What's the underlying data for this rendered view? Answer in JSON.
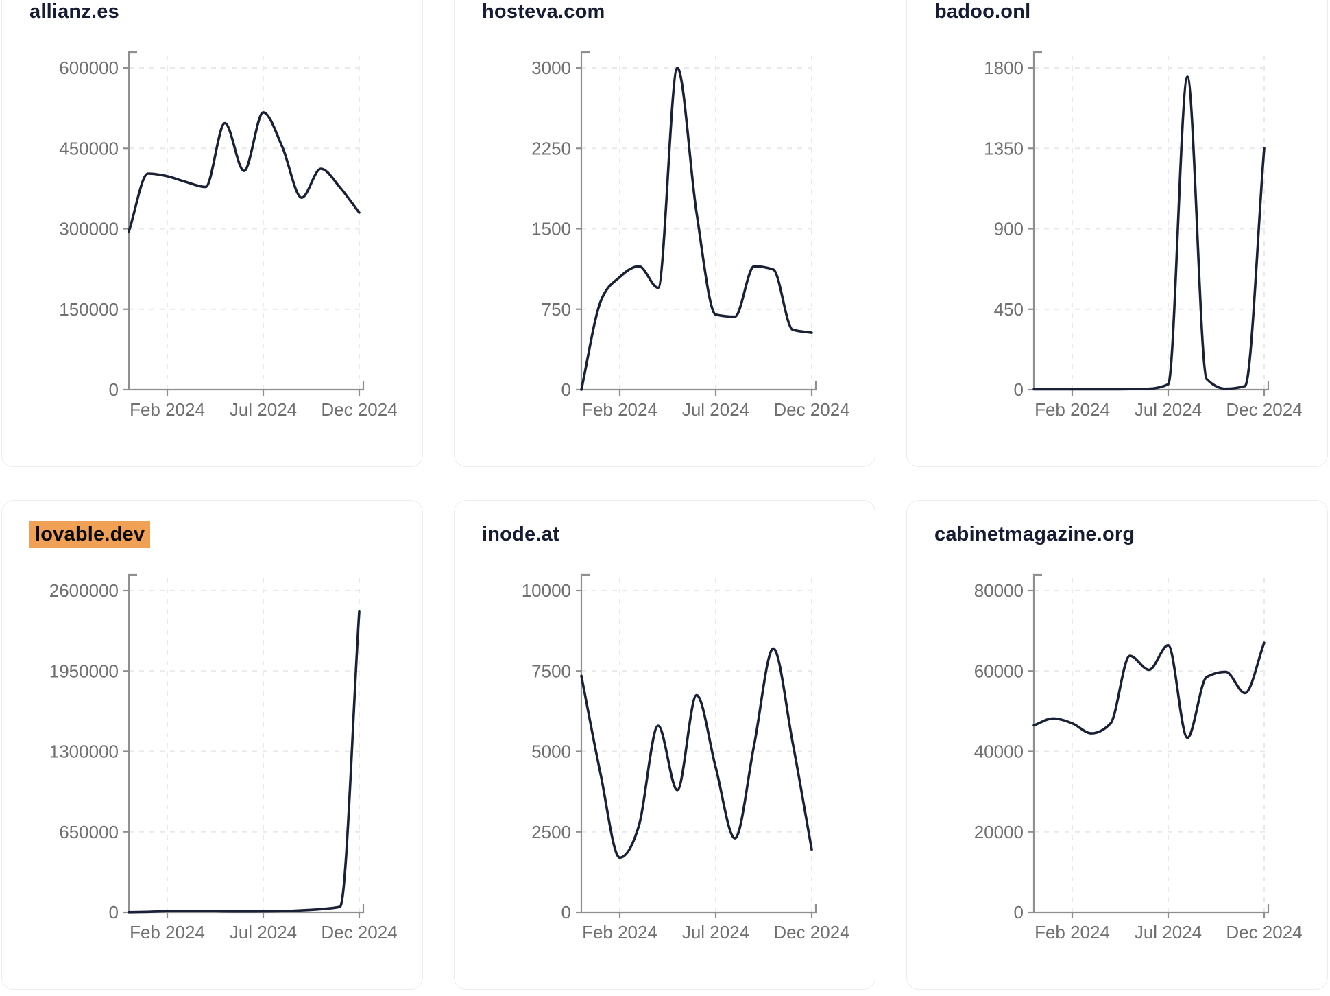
{
  "page": {
    "background": "#ffffff"
  },
  "theme": {
    "line_color": "#1a2035",
    "title_color": "#161c33",
    "tick_color": "#6f6f6f",
    "axis_color": "#8f8f8f",
    "grid_color": "#e9e9e9",
    "card_border": "#ececec",
    "card_bg": "#ffffff",
    "highlight_bg": "#f0a155",
    "highlight_text": "#0a0a0a"
  },
  "highlighted_chart": "lovable.dev",
  "x_tick_labels": [
    "Feb 2024",
    "Jul 2024",
    "Dec 2024"
  ],
  "chart_data": [
    {
      "type": "line",
      "title": "allianz.es",
      "x": [
        "Dec 2023",
        "Jan 2024",
        "Feb 2024",
        "Mar 2024",
        "Apr 2024",
        "May 2024",
        "Jun 2024",
        "Jul 2024",
        "Aug 2024",
        "Sep 2024",
        "Oct 2024",
        "Nov 2024",
        "Dec 2024"
      ],
      "values": [
        295000,
        403000,
        398000,
        387000,
        378000,
        497000,
        408000,
        517000,
        452000,
        358000,
        412000,
        377000,
        330000
      ],
      "ylim": [
        0,
        600000
      ],
      "y_ticks": [
        600000,
        450000,
        300000,
        150000,
        0
      ],
      "x_tick_labels": [
        "Feb 2024",
        "Jul 2024",
        "Dec 2024"
      ],
      "x_tick_indices": [
        2,
        7,
        12
      ],
      "grid": "dashed",
      "legend": false
    },
    {
      "type": "line",
      "title": "hosteva.com",
      "x": [
        "Dec 2023",
        "Jan 2024",
        "Feb 2024",
        "Mar 2024",
        "Apr 2024",
        "May 2024",
        "Jun 2024",
        "Jul 2024",
        "Aug 2024",
        "Sep 2024",
        "Oct 2024",
        "Nov 2024",
        "Dec 2024"
      ],
      "values": [
        0,
        820,
        1050,
        1150,
        950,
        3000,
        1650,
        700,
        680,
        1150,
        1120,
        560,
        530
      ],
      "ylim": [
        0,
        3000
      ],
      "y_ticks": [
        3000,
        2250,
        1500,
        750,
        0
      ],
      "x_tick_labels": [
        "Feb 2024",
        "Jul 2024",
        "Dec 2024"
      ],
      "x_tick_indices": [
        2,
        7,
        12
      ],
      "grid": "dashed",
      "legend": false
    },
    {
      "type": "line",
      "title": "badoo.onl",
      "x": [
        "Dec 2023",
        "Jan 2024",
        "Feb 2024",
        "Mar 2024",
        "Apr 2024",
        "May 2024",
        "Jun 2024",
        "Jul 2024",
        "Aug 2024",
        "Sep 2024",
        "Oct 2024",
        "Nov 2024",
        "Dec 2024"
      ],
      "values": [
        2,
        2,
        2,
        2,
        2,
        3,
        5,
        30,
        1750,
        60,
        5,
        20,
        1350
      ],
      "ylim": [
        0,
        1800
      ],
      "y_ticks": [
        1800,
        1350,
        900,
        450,
        0
      ],
      "x_tick_labels": [
        "Feb 2024",
        "Jul 2024",
        "Dec 2024"
      ],
      "x_tick_indices": [
        2,
        7,
        12
      ],
      "grid": "dashed",
      "legend": false
    },
    {
      "type": "line",
      "title": "lovable.dev",
      "x": [
        "Dec 2023",
        "Jan 2024",
        "Feb 2024",
        "Mar 2024",
        "Apr 2024",
        "May 2024",
        "Jun 2024",
        "Jul 2024",
        "Aug 2024",
        "Sep 2024",
        "Oct 2024",
        "Nov 2024",
        "Dec 2024"
      ],
      "values": [
        1000,
        4000,
        10000,
        12000,
        11000,
        8000,
        7000,
        8000,
        10000,
        16000,
        26000,
        45000,
        2430000
      ],
      "ylim": [
        0,
        2600000
      ],
      "y_ticks": [
        2600000,
        1950000,
        1300000,
        650000,
        0
      ],
      "x_tick_labels": [
        "Feb 2024",
        "Jul 2024",
        "Dec 2024"
      ],
      "x_tick_indices": [
        2,
        7,
        12
      ],
      "grid": "dashed",
      "legend": false
    },
    {
      "type": "line",
      "title": "inode.at",
      "x": [
        "Dec 2023",
        "Jan 2024",
        "Feb 2024",
        "Mar 2024",
        "Apr 2024",
        "May 2024",
        "Jun 2024",
        "Jul 2024",
        "Aug 2024",
        "Sep 2024",
        "Oct 2024",
        "Nov 2024",
        "Dec 2024"
      ],
      "values": [
        7350,
        4300,
        1700,
        2700,
        5800,
        3800,
        6750,
        4500,
        2300,
        5200,
        8200,
        5300,
        1950
      ],
      "ylim": [
        0,
        10000
      ],
      "y_ticks": [
        10000,
        7500,
        5000,
        2500,
        0
      ],
      "x_tick_labels": [
        "Feb 2024",
        "Jul 2024",
        "Dec 2024"
      ],
      "x_tick_indices": [
        2,
        7,
        12
      ],
      "grid": "dashed",
      "legend": false
    },
    {
      "type": "line",
      "title": "cabinetmagazine.org",
      "x": [
        "Dec 2023",
        "Jan 2024",
        "Feb 2024",
        "Mar 2024",
        "Apr 2024",
        "May 2024",
        "Jun 2024",
        "Jul 2024",
        "Aug 2024",
        "Sep 2024",
        "Oct 2024",
        "Nov 2024",
        "Dec 2024"
      ],
      "values": [
        46500,
        48200,
        47000,
        44500,
        47000,
        63800,
        60300,
        66400,
        43400,
        58500,
        59800,
        54500,
        67000
      ],
      "ylim": [
        0,
        80000
      ],
      "y_ticks": [
        80000,
        60000,
        40000,
        20000,
        0
      ],
      "x_tick_labels": [
        "Feb 2024",
        "Jul 2024",
        "Dec 2024"
      ],
      "x_tick_indices": [
        2,
        7,
        12
      ],
      "grid": "dashed",
      "legend": false
    }
  ]
}
